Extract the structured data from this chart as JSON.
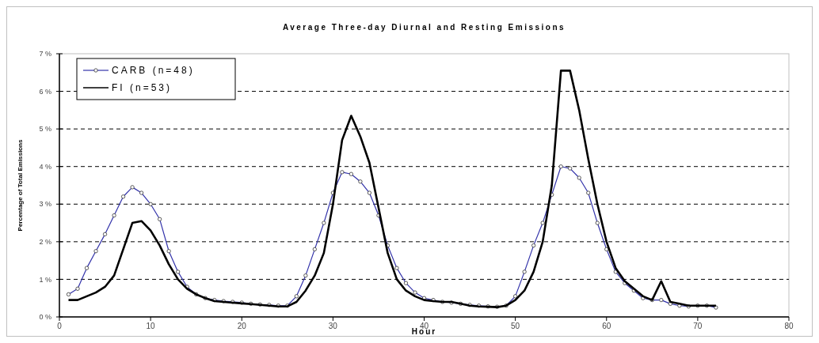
{
  "chart_data": {
    "type": "line",
    "title": "Average Three-day Diurnal and Resting Emissions",
    "xlabel": "Hour",
    "ylabel": "Percentage of Total Emissions",
    "x": [
      1,
      2,
      3,
      4,
      5,
      6,
      7,
      8,
      9,
      10,
      11,
      12,
      13,
      14,
      15,
      16,
      17,
      18,
      19,
      20,
      21,
      22,
      23,
      24,
      25,
      26,
      27,
      28,
      29,
      30,
      31,
      32,
      33,
      34,
      35,
      36,
      37,
      38,
      39,
      40,
      41,
      42,
      43,
      44,
      45,
      46,
      47,
      48,
      49,
      50,
      51,
      52,
      53,
      54,
      55,
      56,
      57,
      58,
      59,
      60,
      61,
      62,
      63,
      64,
      65,
      66,
      67,
      68,
      69,
      70,
      71,
      72
    ],
    "series": [
      {
        "name": "CARB (n=48)",
        "color": "#3333aa",
        "marker": "circle",
        "values": [
          0.6,
          0.75,
          1.3,
          1.75,
          2.2,
          2.7,
          3.2,
          3.45,
          3.3,
          3.0,
          2.6,
          1.75,
          1.2,
          0.8,
          0.6,
          0.5,
          0.45,
          0.42,
          0.4,
          0.38,
          0.35,
          0.33,
          0.32,
          0.3,
          0.3,
          0.55,
          1.1,
          1.8,
          2.5,
          3.3,
          3.85,
          3.8,
          3.6,
          3.3,
          2.7,
          1.9,
          1.3,
          0.9,
          0.65,
          0.5,
          0.45,
          0.4,
          0.38,
          0.35,
          0.32,
          0.3,
          0.28,
          0.27,
          0.3,
          0.55,
          1.2,
          1.9,
          2.5,
          3.25,
          4.0,
          3.95,
          3.7,
          3.3,
          2.5,
          1.8,
          1.2,
          0.9,
          0.7,
          0.5,
          0.45,
          0.45,
          0.35,
          0.3,
          0.28,
          0.3,
          0.3,
          0.25
        ]
      },
      {
        "name": "FI (n=53)",
        "color": "#000000",
        "marker": "none",
        "values": [
          0.45,
          0.45,
          0.55,
          0.65,
          0.8,
          1.1,
          1.8,
          2.5,
          2.55,
          2.3,
          1.9,
          1.4,
          1.0,
          0.75,
          0.6,
          0.5,
          0.42,
          0.4,
          0.38,
          0.36,
          0.34,
          0.32,
          0.3,
          0.28,
          0.28,
          0.4,
          0.7,
          1.1,
          1.7,
          3.0,
          4.7,
          5.35,
          4.8,
          4.1,
          2.9,
          1.7,
          1.0,
          0.7,
          0.55,
          0.45,
          0.42,
          0.4,
          0.4,
          0.35,
          0.3,
          0.28,
          0.27,
          0.26,
          0.3,
          0.45,
          0.7,
          1.2,
          2.0,
          3.5,
          6.55,
          6.55,
          5.5,
          4.2,
          3.0,
          2.0,
          1.3,
          0.95,
          0.75,
          0.55,
          0.45,
          0.95,
          0.4,
          0.35,
          0.3,
          0.3,
          0.3,
          0.3
        ]
      }
    ],
    "xlim": [
      0,
      80
    ],
    "xticks": [
      0,
      10,
      20,
      30,
      40,
      50,
      60,
      70,
      80
    ],
    "ylim": [
      0,
      7
    ],
    "yticks": [
      {
        "value": 0,
        "label": "0 %"
      },
      {
        "value": 1,
        "label": "1 %"
      },
      {
        "value": 2,
        "label": "2 %"
      },
      {
        "value": 3,
        "label": "3 %"
      },
      {
        "value": 4,
        "label": "4 %"
      },
      {
        "value": 5,
        "label": "5 %"
      },
      {
        "value": 6,
        "label": "6 %"
      },
      {
        "value": 7,
        "label": "7 %"
      }
    ],
    "grid": "y",
    "legend": "top left"
  }
}
